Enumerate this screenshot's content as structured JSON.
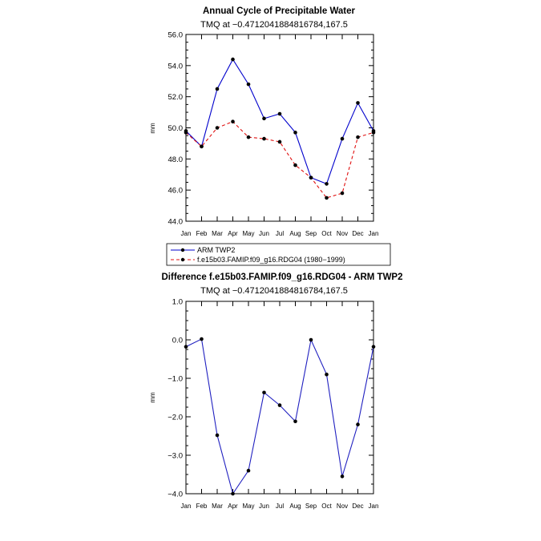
{
  "months": [
    "Jan",
    "Feb",
    "Mar",
    "Apr",
    "May",
    "Jun",
    "Jul",
    "Aug",
    "Sep",
    "Oct",
    "Nov",
    "Dec",
    "Jan"
  ],
  "colors": {
    "obs": "#0000cc",
    "model": "#e01010",
    "diff": "#2020c0",
    "marker": "#000000"
  },
  "chart_data": [
    {
      "type": "line",
      "title": "Annual Cycle of Precipitable Water",
      "subtitle": "TMQ at −0.4712041884816784,167.5",
      "xlabel": "",
      "ylabel": "mm",
      "ylim": [
        44.0,
        56.0
      ],
      "yticks": [
        44.0,
        46.0,
        48.0,
        50.0,
        52.0,
        54.0,
        56.0
      ],
      "ytick_labels": [
        "44.0",
        "46.0",
        "48.0",
        "50.0",
        "52.0",
        "54.0",
        "56.0"
      ],
      "grid": false,
      "legend_position": "below",
      "series": [
        {
          "name": "ARM TWP2",
          "style": "solid",
          "values": [
            49.8,
            48.8,
            52.5,
            54.4,
            52.8,
            50.6,
            50.9,
            49.7,
            46.8,
            46.4,
            49.3,
            51.6,
            49.8
          ]
        },
        {
          "name": "f.e15b03.FAMIP.f09_g16.RDG04 (1980−1999)",
          "style": "dashed",
          "values": [
            49.7,
            48.8,
            50.0,
            50.4,
            49.4,
            49.3,
            49.1,
            47.6,
            46.8,
            45.5,
            45.8,
            49.4,
            49.7
          ]
        }
      ]
    },
    {
      "type": "line",
      "title": "Difference f.e15b03.FAMIP.f09_g16.RDG04 - ARM TWP2",
      "subtitle": "TMQ at −0.4712041884816784,167.5",
      "xlabel": "",
      "ylabel": "mm",
      "ylim": [
        -4.0,
        1.0
      ],
      "yticks": [
        -4.0,
        -3.0,
        -2.0,
        -1.0,
        0.0,
        1.0
      ],
      "ytick_labels": [
        "−4.0",
        "−3.0",
        "−2.0",
        "−1.0",
        "0.0",
        "1.0"
      ],
      "grid": false,
      "series": [
        {
          "values": [
            -0.18,
            0.02,
            -2.48,
            -4.0,
            -3.4,
            -1.37,
            -1.7,
            -2.12,
            0.0,
            -0.9,
            -3.55,
            -2.2,
            -0.18
          ]
        }
      ]
    }
  ]
}
